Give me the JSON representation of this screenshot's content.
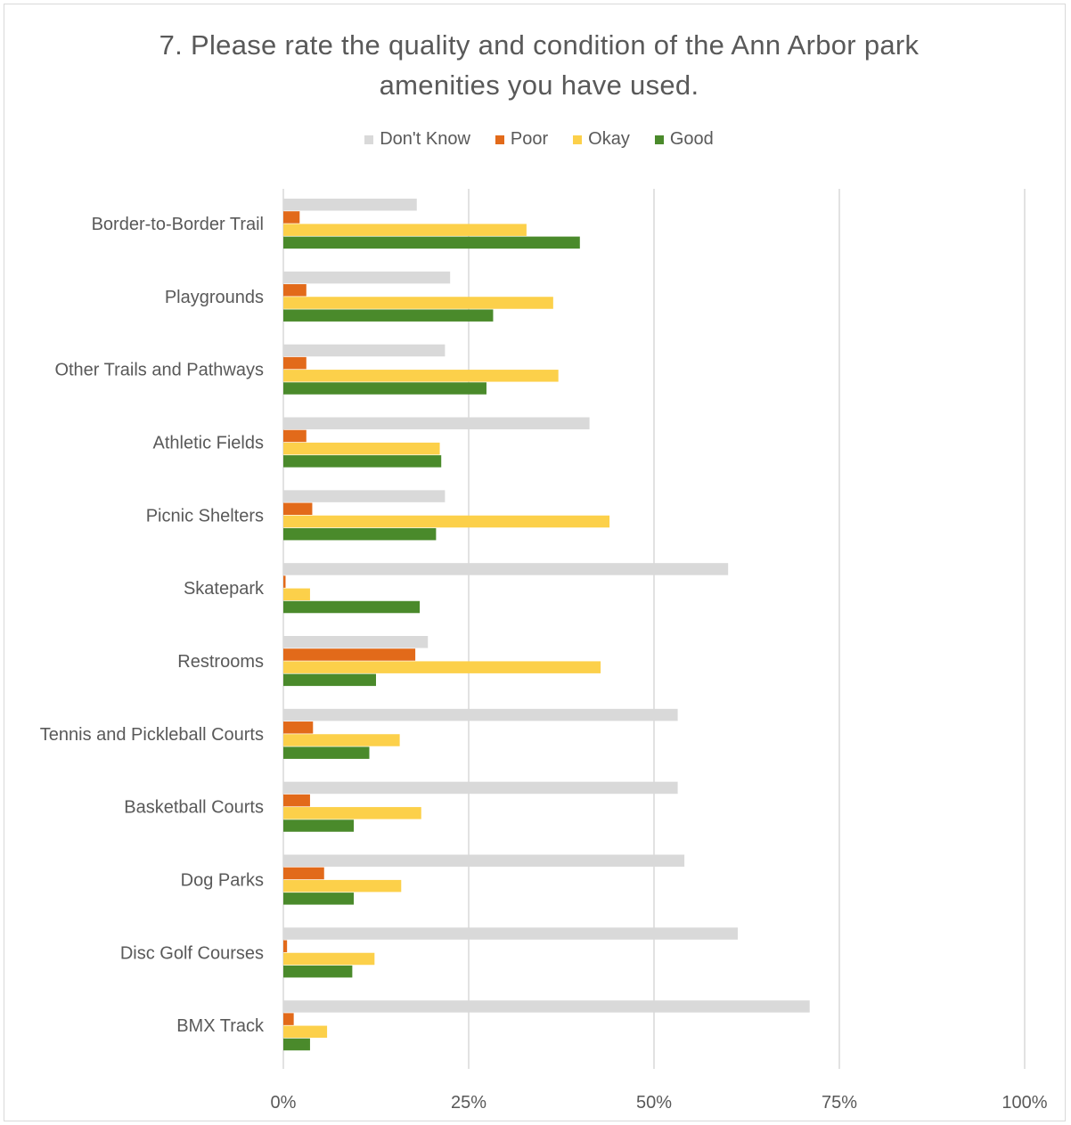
{
  "chart_data": {
    "type": "bar",
    "orientation": "horizontal",
    "title_line1": "7. Please rate the quality and condition of the Ann Arbor park",
    "title_line2": "amenities you have used.",
    "xlim": [
      0,
      100
    ],
    "ticks": [
      "0%",
      "25%",
      "50%",
      "75%",
      "100%"
    ],
    "tick_values": [
      0,
      25,
      50,
      75,
      100
    ],
    "grid": true,
    "legend_position": "top",
    "categories": [
      "Border-to-Border Trail",
      "Playgrounds",
      "Other Trails and Pathways",
      "Athletic Fields",
      "Picnic Shelters",
      "Skatepark",
      "Restrooms",
      "Tennis and Pickleball Courts",
      "Basketball Courts",
      "Dog Parks",
      "Disc Golf Courses",
      "BMX Track"
    ],
    "series": [
      {
        "name": "Don't Know",
        "color": "#d9d9d9",
        "values": [
          18,
          22.5,
          21.8,
          41.3,
          21.8,
          60,
          19.5,
          53.2,
          53.2,
          54.1,
          61.3,
          71
        ]
      },
      {
        "name": "Poor",
        "color": "#e26a1a",
        "values": [
          2.2,
          3.1,
          3.1,
          3.1,
          3.9,
          0.3,
          17.8,
          4,
          3.6,
          5.5,
          0.5,
          1.4
        ]
      },
      {
        "name": "Okay",
        "color": "#fcd04a",
        "values": [
          32.8,
          36.4,
          37.1,
          21.1,
          44,
          3.6,
          42.8,
          15.7,
          18.6,
          15.9,
          12.3,
          5.9
        ]
      },
      {
        "name": "Good",
        "color": "#4a8a2b",
        "values": [
          40,
          28.3,
          27.4,
          21.3,
          20.6,
          18.4,
          12.5,
          11.6,
          9.5,
          9.5,
          9.3,
          3.6
        ]
      }
    ]
  }
}
